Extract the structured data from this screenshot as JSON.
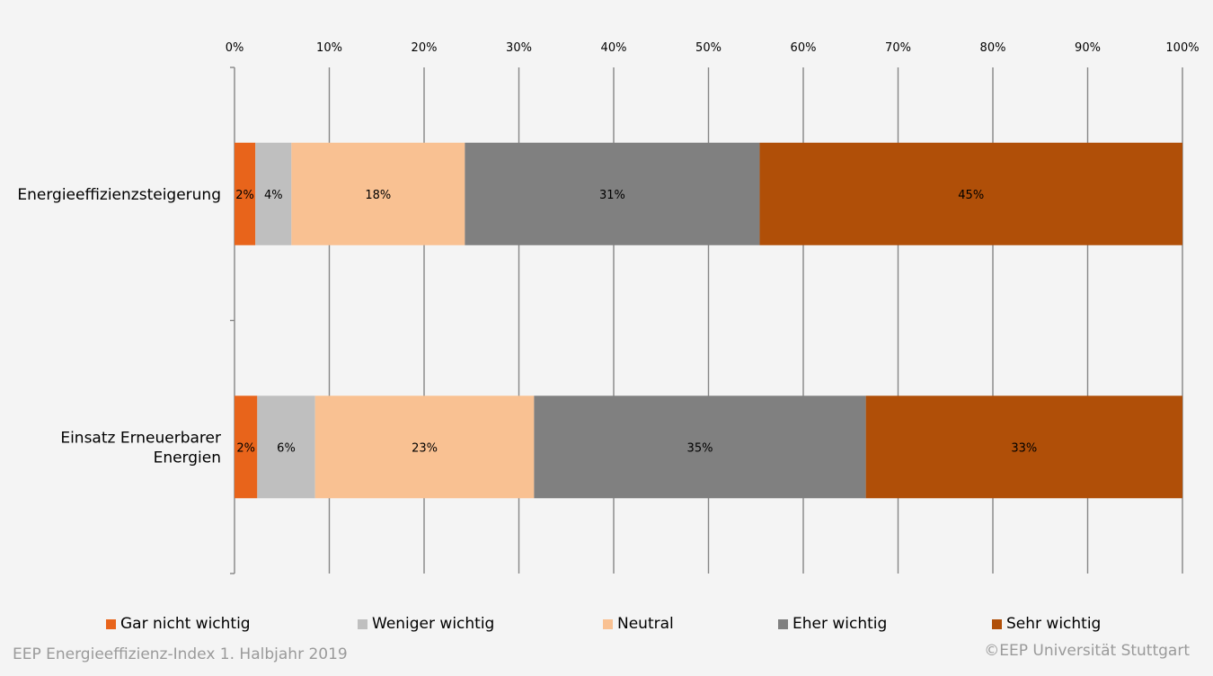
{
  "chart_data": {
    "type": "bar",
    "orientation": "horizontal",
    "stacked": true,
    "percent_stacked": true,
    "categories": [
      "Energieeffizienzsteigerung",
      "Einsatz Erneuerbarer Energien"
    ],
    "series": [
      {
        "name": "Gar nicht wichtig",
        "color": "#e8641b",
        "values": [
          2,
          2
        ],
        "labels": [
          "2%",
          "2%"
        ]
      },
      {
        "name": "Weniger wichtig",
        "color": "#bfbfbf",
        "values": [
          4,
          6
        ],
        "labels": [
          "4%",
          "6%"
        ]
      },
      {
        "name": "Neutral",
        "color": "#f9c192",
        "values": [
          18,
          23
        ],
        "labels": [
          "18%",
          "23%"
        ]
      },
      {
        "name": "Eher wichtig",
        "color": "#808080",
        "values": [
          31,
          35
        ],
        "labels": [
          "31%",
          "35%"
        ]
      },
      {
        "name": "Sehr wichtig",
        "color": "#b04f08",
        "values": [
          45,
          33
        ],
        "labels": [
          "45%",
          "33%"
        ]
      }
    ],
    "bar_extents": [
      [
        [
          0,
          2.2
        ],
        [
          2.2,
          6.0
        ],
        [
          6.0,
          24.3
        ],
        [
          24.3,
          55.4
        ],
        [
          55.4,
          100
        ]
      ],
      [
        [
          0,
          2.4
        ],
        [
          2.4,
          8.5
        ],
        [
          8.5,
          31.6
        ],
        [
          31.6,
          66.6
        ],
        [
          66.6,
          100
        ]
      ]
    ],
    "xlim": [
      0,
      100
    ],
    "xticks": [
      "0%",
      "10%",
      "20%",
      "30%",
      "40%",
      "50%",
      "60%",
      "70%",
      "80%",
      "90%",
      "100%"
    ],
    "xaxis_position": "top",
    "grid": "vertical",
    "legend_position": "bottom",
    "label_colors": {
      "default": "#000000"
    }
  },
  "footer": {
    "left": "EEP Energieeffizienz-Index 1. Halbjahr 2019",
    "right": "©EEP Universität Stuttgart"
  }
}
